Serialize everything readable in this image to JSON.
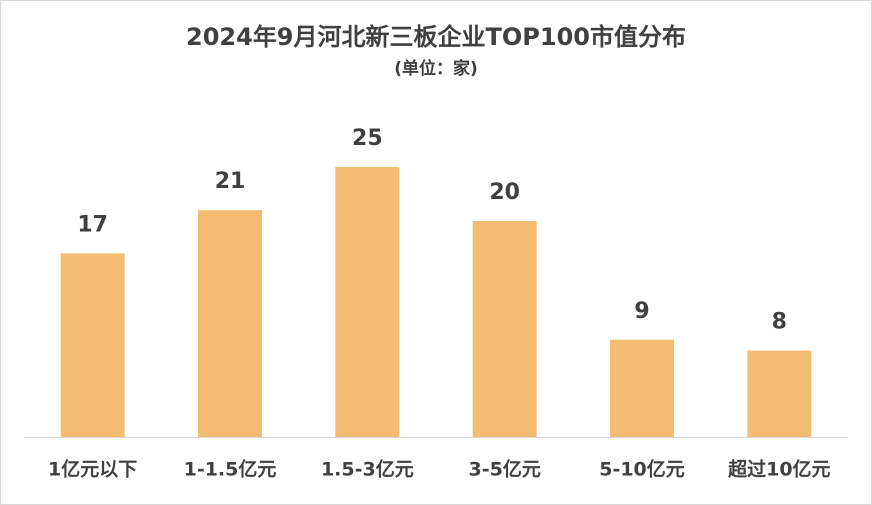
{
  "chart_data": {
    "type": "bar",
    "title": "2024年9月河北新三板企业TOP100市值分布",
    "subtitle": "(单位：家)",
    "categories": [
      "1亿元以下",
      "1-1.5亿元",
      "1.5-3亿元",
      "3-5亿元",
      "5-10亿元",
      "超过10亿元"
    ],
    "values": [
      17,
      21,
      25,
      20,
      9,
      8
    ],
    "color": "#f2bd72"
  }
}
